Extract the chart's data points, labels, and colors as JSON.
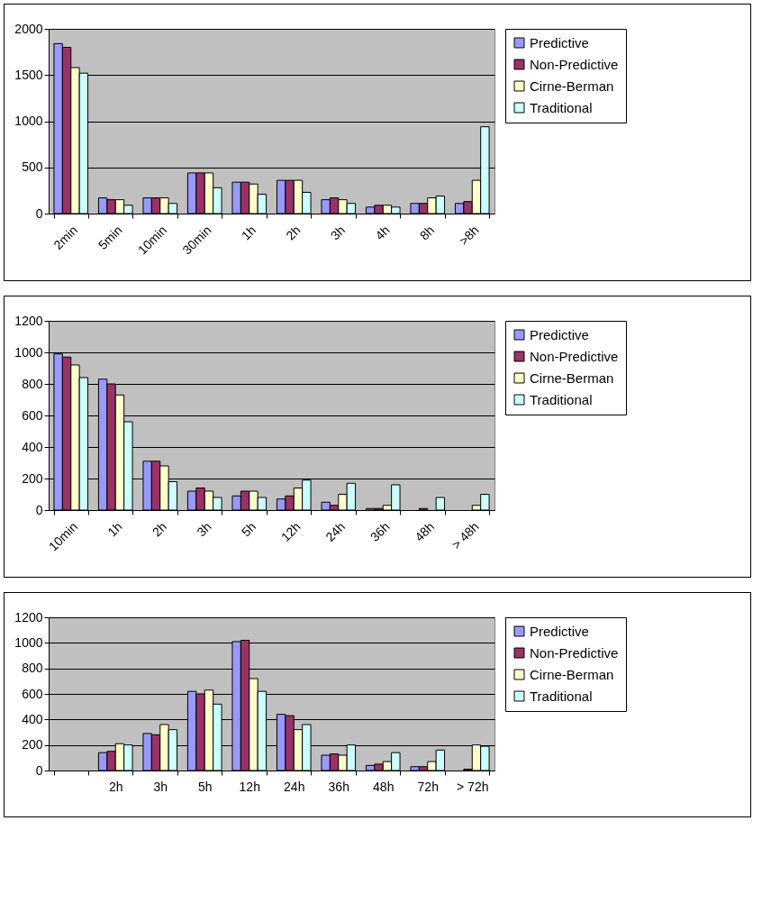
{
  "chart_data": [
    {
      "type": "bar",
      "categories": [
        "2min",
        "5min",
        "10min",
        "30min",
        "1h",
        "2h",
        "3h",
        "4h",
        "8h",
        ">8h"
      ],
      "ylim": [
        0,
        2000
      ],
      "yticks": [
        0,
        500,
        1000,
        1500,
        2000
      ],
      "grid": "y",
      "legend": "right",
      "series": [
        {
          "name": "Predictive",
          "color": "#9999ff",
          "values": [
            1840,
            170,
            170,
            440,
            340,
            360,
            150,
            70,
            110,
            110
          ]
        },
        {
          "name": "Non-Predictive",
          "color": "#993366",
          "values": [
            1800,
            150,
            170,
            440,
            340,
            360,
            170,
            90,
            110,
            130
          ]
        },
        {
          "name": "Cirne-Berman",
          "color": "#ffffcc",
          "values": [
            1580,
            150,
            170,
            440,
            320,
            360,
            150,
            90,
            170,
            360
          ]
        },
        {
          "name": "Traditional",
          "color": "#ccffff",
          "values": [
            1520,
            90,
            110,
            280,
            210,
            230,
            110,
            70,
            190,
            940
          ]
        }
      ]
    },
    {
      "type": "bar",
      "categories": [
        "10min",
        "1h",
        "2h",
        "3h",
        "5h",
        "12h",
        "24h",
        "36h",
        "48h",
        "> 48h"
      ],
      "ylim": [
        0,
        1200
      ],
      "yticks": [
        0,
        200,
        400,
        600,
        800,
        1000,
        1200
      ],
      "grid": "y",
      "legend": "right",
      "series": [
        {
          "name": "Predictive",
          "color": "#9999ff",
          "values": [
            990,
            830,
            310,
            120,
            90,
            70,
            50,
            10,
            null,
            null
          ]
        },
        {
          "name": "Non-Predictive",
          "color": "#993366",
          "values": [
            970,
            800,
            310,
            140,
            120,
            90,
            30,
            10,
            10,
            null
          ]
        },
        {
          "name": "Cirne-Berman",
          "color": "#ffffcc",
          "values": [
            920,
            730,
            280,
            120,
            120,
            140,
            100,
            30,
            null,
            30
          ]
        },
        {
          "name": "Traditional",
          "color": "#ccffff",
          "values": [
            840,
            560,
            180,
            80,
            80,
            190,
            170,
            160,
            80,
            100
          ]
        }
      ]
    },
    {
      "type": "bar",
      "categories": [
        null,
        "2h",
        "3h",
        "5h",
        "12h",
        "24h",
        "36h",
        "48h",
        "72h",
        "> 72h"
      ],
      "ylim": [
        0,
        1200
      ],
      "yticks": [
        0,
        200,
        400,
        600,
        800,
        1000,
        1200
      ],
      "grid": "y",
      "legend": "right",
      "series": [
        {
          "name": "Predictive",
          "color": "#9999ff",
          "values": [
            null,
            140,
            290,
            620,
            1010,
            440,
            120,
            40,
            30,
            null
          ]
        },
        {
          "name": "Non-Predictive",
          "color": "#993366",
          "values": [
            null,
            150,
            280,
            600,
            1020,
            430,
            130,
            50,
            30,
            10
          ]
        },
        {
          "name": "Cirne-Berman",
          "color": "#ffffcc",
          "values": [
            null,
            210,
            360,
            630,
            720,
            320,
            120,
            70,
            70,
            200
          ]
        },
        {
          "name": "Traditional",
          "color": "#ccffff",
          "values": [
            null,
            200,
            320,
            520,
            620,
            360,
            200,
            140,
            160,
            190
          ]
        }
      ]
    }
  ]
}
